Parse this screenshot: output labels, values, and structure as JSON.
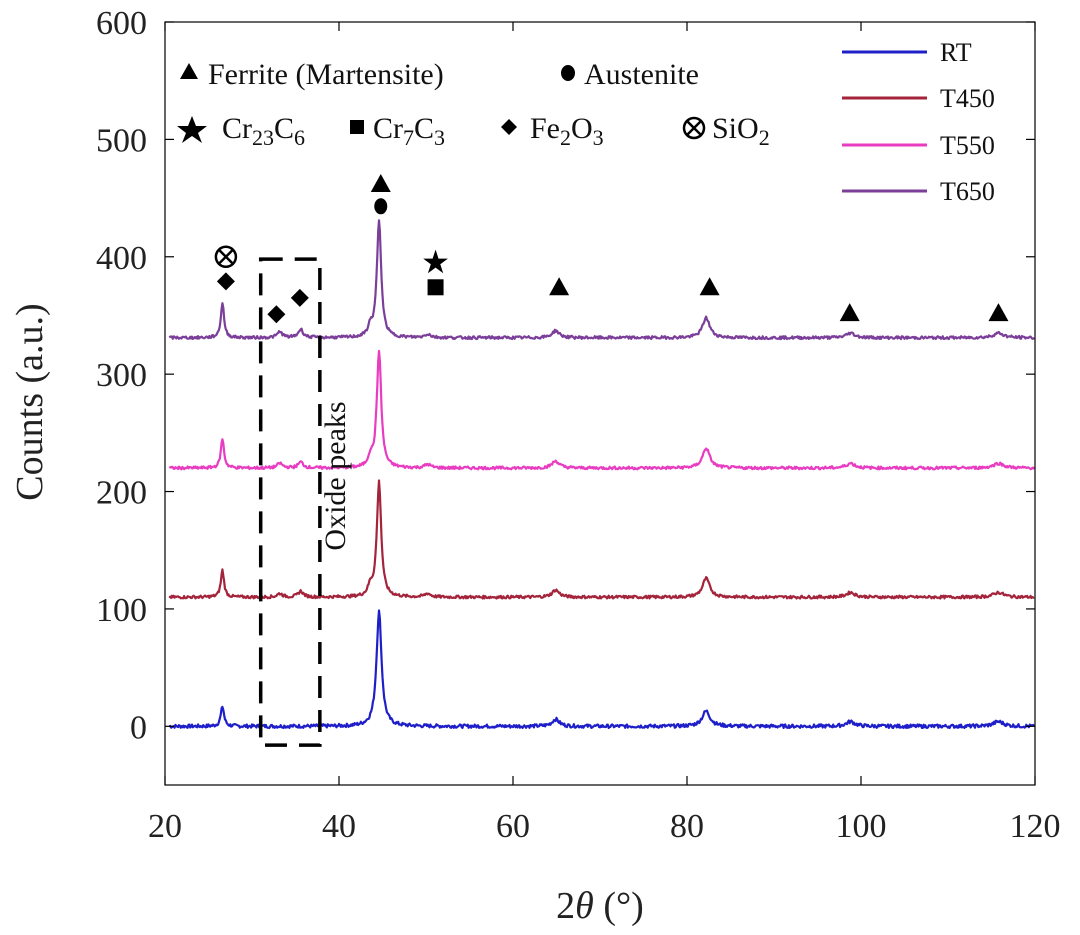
{
  "chart_data": {
    "type": "line",
    "title": "",
    "xlabel_prefix": "2",
    "xlabel_symbol": "θ",
    "xlabel_suffix": " (°)",
    "ylabel": "Counts (a.u.)",
    "xlim": [
      20,
      120
    ],
    "ylim": [
      -50,
      600
    ],
    "xticks": [
      20,
      40,
      60,
      80,
      100,
      120
    ],
    "yticks": [
      0,
      100,
      200,
      300,
      400,
      500,
      600
    ],
    "grid": false,
    "legend_position": "top-right",
    "legend": [
      {
        "name": "RT",
        "color": "#1f1fc9"
      },
      {
        "name": "T450",
        "color": "#a3243b"
      },
      {
        "name": "T550",
        "color": "#e83cc1"
      },
      {
        "name": "T650",
        "color": "#7b3f9a"
      }
    ],
    "series": [
      {
        "name": "RT",
        "color": "#1f1fc9",
        "baseline": 0,
        "noise": 1.5,
        "peaks": [
          [
            26.6,
            17,
            0.22
          ],
          [
            44.6,
            98,
            0.35
          ],
          [
            64.9,
            6,
            0.5
          ],
          [
            82.2,
            13,
            0.55
          ],
          [
            98.8,
            4,
            0.6
          ],
          [
            115.8,
            4,
            0.7
          ]
        ]
      },
      {
        "name": "T450",
        "color": "#a3243b",
        "baseline": 110,
        "noise": 1.2,
        "peaks": [
          [
            26.6,
            23,
            0.22
          ],
          [
            33.2,
            3,
            0.35
          ],
          [
            35.6,
            5,
            0.35
          ],
          [
            43.6,
            8,
            0.3
          ],
          [
            44.6,
            98,
            0.3
          ],
          [
            50.2,
            3,
            0.4
          ],
          [
            64.9,
            6,
            0.5
          ],
          [
            82.2,
            16,
            0.5
          ],
          [
            98.8,
            4,
            0.6
          ],
          [
            115.8,
            4,
            0.7
          ]
        ]
      },
      {
        "name": "T550",
        "color": "#e83cc1",
        "baseline": 220,
        "noise": 1.2,
        "peaks": [
          [
            26.6,
            25,
            0.22
          ],
          [
            33.2,
            4,
            0.35
          ],
          [
            35.6,
            5,
            0.35
          ],
          [
            43.6,
            8,
            0.3
          ],
          [
            44.6,
            100,
            0.3
          ],
          [
            50.2,
            3,
            0.4
          ],
          [
            64.9,
            6,
            0.5
          ],
          [
            82.2,
            17,
            0.5
          ],
          [
            98.8,
            4,
            0.6
          ],
          [
            115.8,
            4,
            0.7
          ]
        ]
      },
      {
        "name": "T650",
        "color": "#7b3f9a",
        "baseline": 331,
        "noise": 1.2,
        "peaks": [
          [
            26.6,
            30,
            0.22
          ],
          [
            33.2,
            5,
            0.35
          ],
          [
            35.6,
            7,
            0.35
          ],
          [
            43.6,
            8,
            0.3
          ],
          [
            44.6,
            99,
            0.3
          ],
          [
            50.2,
            3,
            0.4
          ],
          [
            64.9,
            6,
            0.5
          ],
          [
            82.2,
            17,
            0.5
          ],
          [
            98.8,
            4,
            0.6
          ],
          [
            115.8,
            4,
            0.7
          ]
        ]
      }
    ],
    "phase_legend": {
      "ferrite": "Ferrite (Martensite)",
      "austenite": "Austenite",
      "cr23c6_base": "Cr",
      "cr23c6_sub1": "23",
      "cr23c6_mid": "C",
      "cr23c6_sub2": "6",
      "cr7c3_base": "Cr",
      "cr7c3_sub1": "7",
      "cr7c3_mid": "C",
      "cr7c3_sub2": "3",
      "fe2o3_base": "Fe",
      "fe2o3_sub1": "2",
      "fe2o3_mid": "O",
      "fe2o3_sub2": "3",
      "sio2_base": "SiO",
      "sio2_sub": "2"
    },
    "annotation": "Oxide peaks",
    "markers": [
      {
        "symbol": "triangle",
        "x": 44.8,
        "y": 462
      },
      {
        "symbol": "circle",
        "x": 44.8,
        "y": 443
      },
      {
        "symbol": "triangle",
        "x": 65.3,
        "y": 374
      },
      {
        "symbol": "triangle",
        "x": 82.6,
        "y": 374
      },
      {
        "symbol": "triangle",
        "x": 98.7,
        "y": 352
      },
      {
        "symbol": "triangle",
        "x": 115.8,
        "y": 352
      },
      {
        "symbol": "star",
        "x": 51.1,
        "y": 395
      },
      {
        "symbol": "square",
        "x": 51.1,
        "y": 374
      },
      {
        "symbol": "otimes",
        "x": 27.0,
        "y": 400
      },
      {
        "symbol": "diamond",
        "x": 27.0,
        "y": 379
      },
      {
        "symbol": "diamond",
        "x": 32.8,
        "y": 351
      },
      {
        "symbol": "diamond",
        "x": 35.5,
        "y": 365
      }
    ],
    "oxide_box": {
      "x0": 31.0,
      "x1": 37.8,
      "y0": -16,
      "y1": 398
    }
  }
}
